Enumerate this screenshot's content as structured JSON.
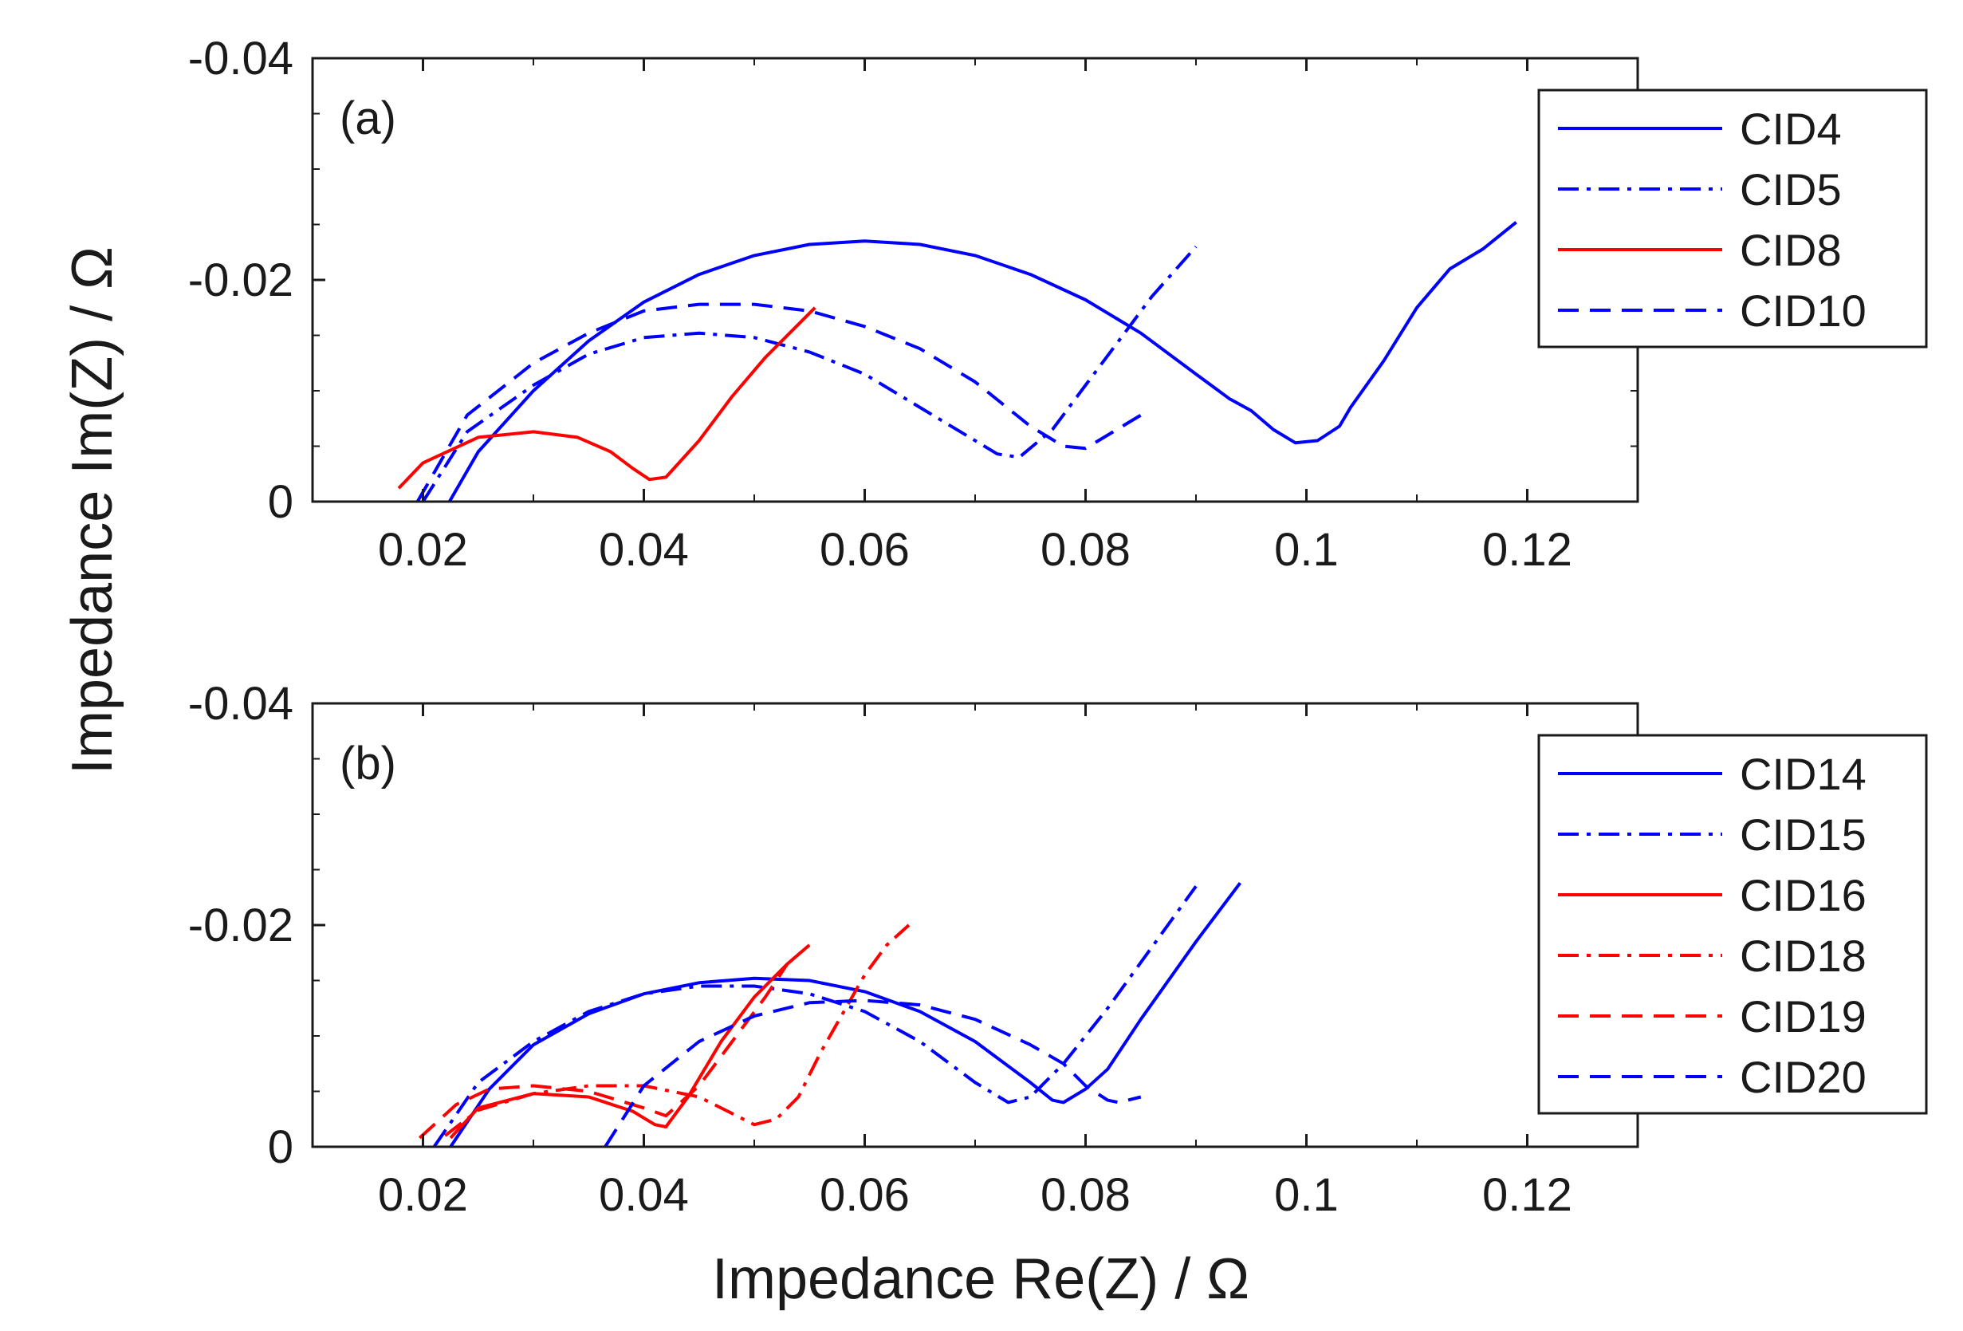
{
  "figure": {
    "xlabel": "Impedance Re(Z) / Ω",
    "ylabel": "Impedance Im(Z) / Ω"
  },
  "chart_data": [
    {
      "type": "line",
      "panel_label": "(a)",
      "xlim": [
        0.01,
        0.13
      ],
      "ylim": [
        0,
        -0.04
      ],
      "x_ticks": [
        0.02,
        0.04,
        0.06,
        0.08,
        0.1,
        0.12
      ],
      "x_tick_labels": [
        "0.02",
        "0.04",
        "0.06",
        "0.08",
        "0.1",
        "0.12"
      ],
      "y_ticks": [
        0,
        -0.02,
        -0.04
      ],
      "y_tick_labels": [
        "0",
        "-0.02",
        "-0.04"
      ],
      "legend_position": "top-right outside",
      "series": [
        {
          "name": "CID4",
          "color": "#0000ff",
          "style": "solid",
          "x": [
            0.0224,
            0.025,
            0.03,
            0.035,
            0.04,
            0.045,
            0.05,
            0.055,
            0.06,
            0.065,
            0.07,
            0.075,
            0.08,
            0.085,
            0.09,
            0.093,
            0.095,
            0.097,
            0.099,
            0.101,
            0.103,
            0.104,
            0.107,
            0.11,
            0.113,
            0.116,
            0.119
          ],
          "y": [
            0.0,
            -0.0045,
            -0.01,
            -0.0145,
            -0.018,
            -0.0205,
            -0.0222,
            -0.0232,
            -0.0235,
            -0.0232,
            -0.0222,
            -0.0205,
            -0.0182,
            -0.0152,
            -0.0115,
            -0.0093,
            -0.0082,
            -0.0065,
            -0.0053,
            -0.0055,
            -0.0068,
            -0.0085,
            -0.0127,
            -0.0175,
            -0.021,
            -0.0228,
            -0.0252
          ]
        },
        {
          "name": "CID5",
          "color": "#0000ff",
          "style": "dashdot",
          "x": [
            0.02,
            0.024,
            0.03,
            0.035,
            0.04,
            0.045,
            0.05,
            0.055,
            0.06,
            0.065,
            0.07,
            0.072,
            0.074,
            0.077,
            0.08,
            0.083,
            0.086,
            0.09
          ],
          "y": [
            0.0,
            -0.0063,
            -0.0105,
            -0.0133,
            -0.0148,
            -0.0152,
            -0.0148,
            -0.0135,
            -0.0115,
            -0.0085,
            -0.0055,
            -0.0043,
            -0.004,
            -0.0065,
            -0.0105,
            -0.0145,
            -0.0185,
            -0.023
          ]
        },
        {
          "name": "CID8",
          "color": "#ff0000",
          "style": "solid",
          "x": [
            0.0178,
            0.02,
            0.025,
            0.03,
            0.034,
            0.037,
            0.039,
            0.0405,
            0.042,
            0.045,
            0.048,
            0.051,
            0.0555
          ],
          "y": [
            -0.0012,
            -0.0035,
            -0.0058,
            -0.0063,
            -0.0058,
            -0.0045,
            -0.003,
            -0.002,
            -0.0022,
            -0.0055,
            -0.0095,
            -0.013,
            -0.0175
          ]
        },
        {
          "name": "CID10",
          "color": "#0000ff",
          "style": "dashed",
          "x": [
            0.0195,
            0.024,
            0.03,
            0.035,
            0.04,
            0.045,
            0.05,
            0.055,
            0.06,
            0.065,
            0.07,
            0.075,
            0.078,
            0.08,
            0.082,
            0.085
          ],
          "y": [
            0.0,
            -0.0078,
            -0.0125,
            -0.0152,
            -0.0172,
            -0.0178,
            -0.0178,
            -0.0172,
            -0.0158,
            -0.0138,
            -0.0108,
            -0.0068,
            -0.005,
            -0.0048,
            -0.006,
            -0.0078
          ]
        }
      ]
    },
    {
      "type": "line",
      "panel_label": "(b)",
      "xlim": [
        0.01,
        0.13
      ],
      "ylim": [
        0,
        -0.04
      ],
      "x_ticks": [
        0.02,
        0.04,
        0.06,
        0.08,
        0.1,
        0.12
      ],
      "x_tick_labels": [
        "0.02",
        "0.04",
        "0.06",
        "0.08",
        "0.1",
        "0.12"
      ],
      "y_ticks": [
        0,
        -0.02,
        -0.04
      ],
      "y_tick_labels": [
        "0",
        "-0.02",
        "-0.04"
      ],
      "legend_position": "right outside",
      "series": [
        {
          "name": "CID14",
          "color": "#0000ff",
          "style": "solid",
          "x": [
            0.0225,
            0.026,
            0.03,
            0.035,
            0.04,
            0.045,
            0.05,
            0.055,
            0.06,
            0.065,
            0.07,
            0.075,
            0.077,
            0.078,
            0.08,
            0.082,
            0.085,
            0.09,
            0.094
          ],
          "y": [
            0.0,
            -0.0052,
            -0.0092,
            -0.012,
            -0.0138,
            -0.0148,
            -0.0152,
            -0.015,
            -0.014,
            -0.0122,
            -0.0095,
            -0.0058,
            -0.0042,
            -0.004,
            -0.0052,
            -0.007,
            -0.0115,
            -0.0185,
            -0.0238
          ]
        },
        {
          "name": "CID15",
          "color": "#0000ff",
          "style": "dashdot",
          "x": [
            0.021,
            0.025,
            0.03,
            0.035,
            0.04,
            0.045,
            0.05,
            0.055,
            0.06,
            0.065,
            0.07,
            0.073,
            0.075,
            0.078,
            0.082,
            0.086,
            0.09
          ],
          "y": [
            0.0,
            -0.0058,
            -0.0095,
            -0.0122,
            -0.0138,
            -0.0145,
            -0.0145,
            -0.0138,
            -0.0122,
            -0.0095,
            -0.0058,
            -0.004,
            -0.0045,
            -0.0075,
            -0.0125,
            -0.018,
            -0.0235
          ]
        },
        {
          "name": "CID16",
          "color": "#ff0000",
          "style": "solid",
          "x": [
            0.0225,
            0.025,
            0.03,
            0.035,
            0.039,
            0.041,
            0.042,
            0.044,
            0.047,
            0.05,
            0.053,
            0.055
          ],
          "y": [
            -0.0008,
            -0.0035,
            -0.0048,
            -0.0045,
            -0.0032,
            -0.002,
            -0.0018,
            -0.0045,
            -0.0095,
            -0.0135,
            -0.0165,
            -0.0182
          ]
        },
        {
          "name": "CID18",
          "color": "#ff0000",
          "style": "dashdot",
          "x": [
            0.022,
            0.025,
            0.03,
            0.035,
            0.04,
            0.045,
            0.048,
            0.05,
            0.052,
            0.054,
            0.056,
            0.058,
            0.06,
            0.062,
            0.064
          ],
          "y": [
            -0.001,
            -0.0033,
            -0.0048,
            -0.0055,
            -0.0055,
            -0.0045,
            -0.003,
            -0.002,
            -0.0025,
            -0.0045,
            -0.0085,
            -0.012,
            -0.0155,
            -0.0182,
            -0.02
          ]
        },
        {
          "name": "CID19",
          "color": "#ff0000",
          "style": "dashed",
          "x": [
            0.0197,
            0.023,
            0.026,
            0.03,
            0.035,
            0.04,
            0.042,
            0.045,
            0.048,
            0.051,
            0.053
          ],
          "y": [
            -0.0008,
            -0.0038,
            -0.0052,
            -0.0055,
            -0.005,
            -0.0035,
            -0.0028,
            -0.0055,
            -0.0095,
            -0.0135,
            -0.0165
          ]
        },
        {
          "name": "CID20",
          "color": "#0000ff",
          "style": "dashed",
          "x": [
            0.0365,
            0.04,
            0.045,
            0.05,
            0.055,
            0.06,
            0.065,
            0.07,
            0.075,
            0.078,
            0.08,
            0.082,
            0.083,
            0.085
          ],
          "y": [
            0.0,
            -0.0055,
            -0.0095,
            -0.0118,
            -0.013,
            -0.0132,
            -0.0128,
            -0.0115,
            -0.0092,
            -0.0075,
            -0.0055,
            -0.0042,
            -0.004,
            -0.0045
          ]
        }
      ]
    }
  ]
}
